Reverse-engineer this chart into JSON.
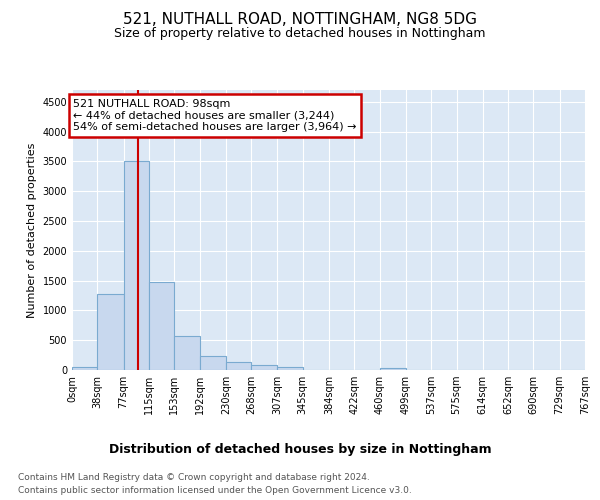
{
  "title": "521, NUTHALL ROAD, NOTTINGHAM, NG8 5DG",
  "subtitle": "Size of property relative to detached houses in Nottingham",
  "xlabel": "Distribution of detached houses by size in Nottingham",
  "ylabel": "Number of detached properties",
  "footer_line1": "Contains HM Land Registry data © Crown copyright and database right 2024.",
  "footer_line2": "Contains public sector information licensed under the Open Government Licence v3.0.",
  "bar_edges": [
    0,
    38,
    77,
    115,
    153,
    192,
    230,
    268,
    307,
    345,
    384,
    422,
    460,
    499,
    537,
    575,
    614,
    652,
    690,
    729,
    767
  ],
  "bar_heights": [
    50,
    1280,
    3500,
    1480,
    575,
    240,
    140,
    90,
    50,
    0,
    0,
    0,
    30,
    0,
    0,
    0,
    0,
    0,
    0,
    0
  ],
  "bar_color": "#c8d8ee",
  "bar_edge_color": "#7aaad0",
  "bar_linewidth": 0.8,
  "fig_bg_color": "#ffffff",
  "plot_bg_color": "#dce8f5",
  "grid_color": "#ffffff",
  "ylim": [
    0,
    4700
  ],
  "yticks": [
    0,
    500,
    1000,
    1500,
    2000,
    2500,
    3000,
    3500,
    4000,
    4500
  ],
  "xlim": [
    0,
    767
  ],
  "red_line_x": 98,
  "annotation_text_line1": "521 NUTHALL ROAD: 98sqm",
  "annotation_text_line2": "← 44% of detached houses are smaller (3,244)",
  "annotation_text_line3": "54% of semi-detached houses are larger (3,964) →",
  "annotation_box_color": "#ffffff",
  "annotation_border_color": "#cc0000",
  "title_fontsize": 11,
  "subtitle_fontsize": 9,
  "tick_fontsize": 7,
  "ylabel_fontsize": 8,
  "xlabel_fontsize": 9,
  "footer_fontsize": 6.5,
  "annot_fontsize": 8
}
